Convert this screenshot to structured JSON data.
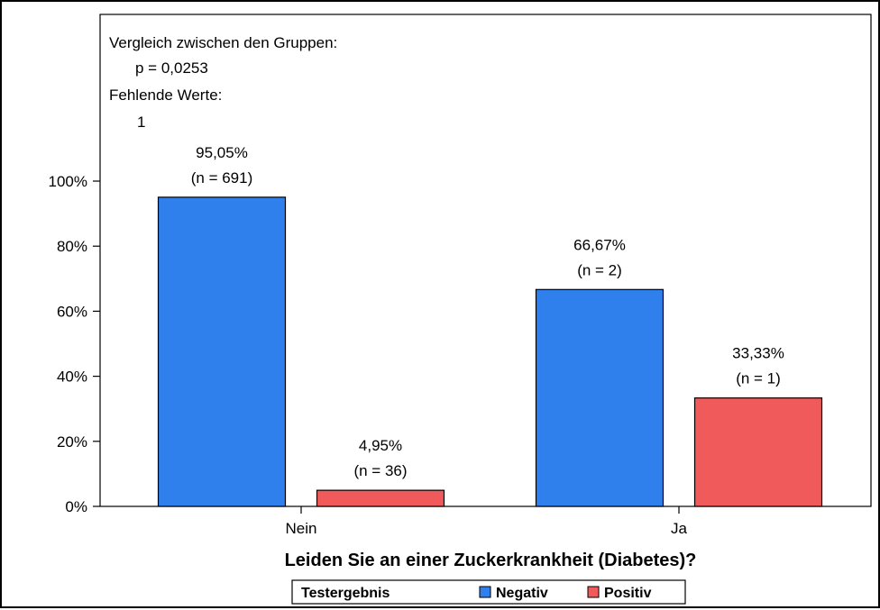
{
  "chart_data": {
    "type": "bar",
    "xlabel": "Leiden Sie an einer Zuckerkrankheit (Diabetes)?",
    "ylabel": "",
    "ylim": [
      0,
      100
    ],
    "y_ticks": [
      "0%",
      "20%",
      "40%",
      "60%",
      "80%",
      "100%"
    ],
    "y_tick_values": [
      0,
      20,
      40,
      60,
      80,
      100
    ],
    "categories": [
      "Nein",
      "Ja"
    ],
    "series": [
      {
        "name": "Negativ",
        "color": "#2f80ed",
        "values": [
          95.05,
          66.67
        ],
        "labels": [
          "95,05%",
          "66,67%"
        ],
        "counts": [
          "(n = 691)",
          "(n = 2)"
        ]
      },
      {
        "name": "Positiv",
        "color": "#f05a5a",
        "values": [
          4.95,
          33.33
        ],
        "labels": [
          "4,95%",
          "33,33%"
        ],
        "counts": [
          "(n = 36)",
          "(n = 1)"
        ]
      }
    ],
    "annotations": {
      "comparison_label": "Vergleich zwischen den Gruppen:",
      "p_value": "p = 0,0253",
      "missing_label": "Fehlende Werte:",
      "missing_value": "1"
    },
    "legend": {
      "title": "Testergebnis",
      "placement": "bottom-center"
    },
    "grid": false
  }
}
